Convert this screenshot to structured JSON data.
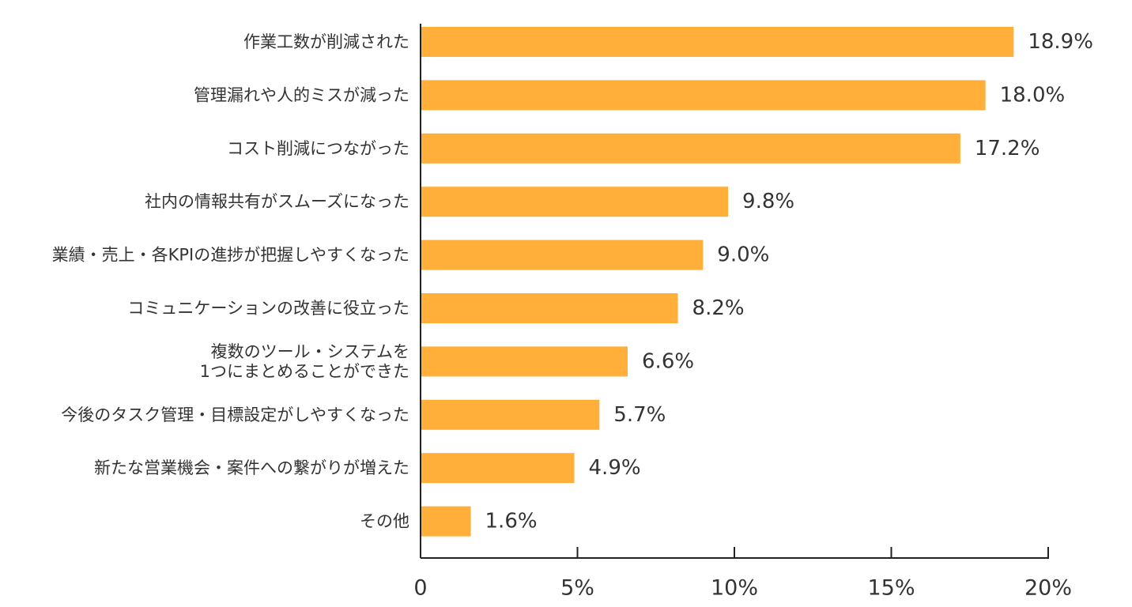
{
  "chart_data": {
    "type": "bar",
    "orientation": "horizontal",
    "categories": [
      "作業工数が削減された",
      "管理漏れや人的ミスが減った",
      "コスト削減につながった",
      "社内の情報共有がスムーズになった",
      "業績・売上・各KPIの進捗が把握しやすくなった",
      "コミュニケーションの改善に役立った",
      "複数のツール・システムを\n1つにまとめることができた",
      "今後のタスク管理・目標設定がしやすくなった",
      "新たな営業機会・案件への繋がりが増えた",
      "その他"
    ],
    "values": [
      18.9,
      18.0,
      17.2,
      9.8,
      9.0,
      8.2,
      6.6,
      5.7,
      4.9,
      1.6
    ],
    "value_labels": [
      "18.9%",
      "18.0%",
      "17.2%",
      "9.8%",
      "9.0%",
      "8.2%",
      "6.6%",
      "5.7%",
      "4.9%",
      "1.6%"
    ],
    "x_ticks": [
      0,
      5,
      10,
      15,
      20
    ],
    "x_tick_labels": [
      "0",
      "5%",
      "10%",
      "15%",
      "20%"
    ],
    "xlim": [
      0,
      20
    ],
    "bar_color": "#FFAF3A",
    "axis_color": "#222222",
    "grid": false,
    "legend": "none"
  }
}
